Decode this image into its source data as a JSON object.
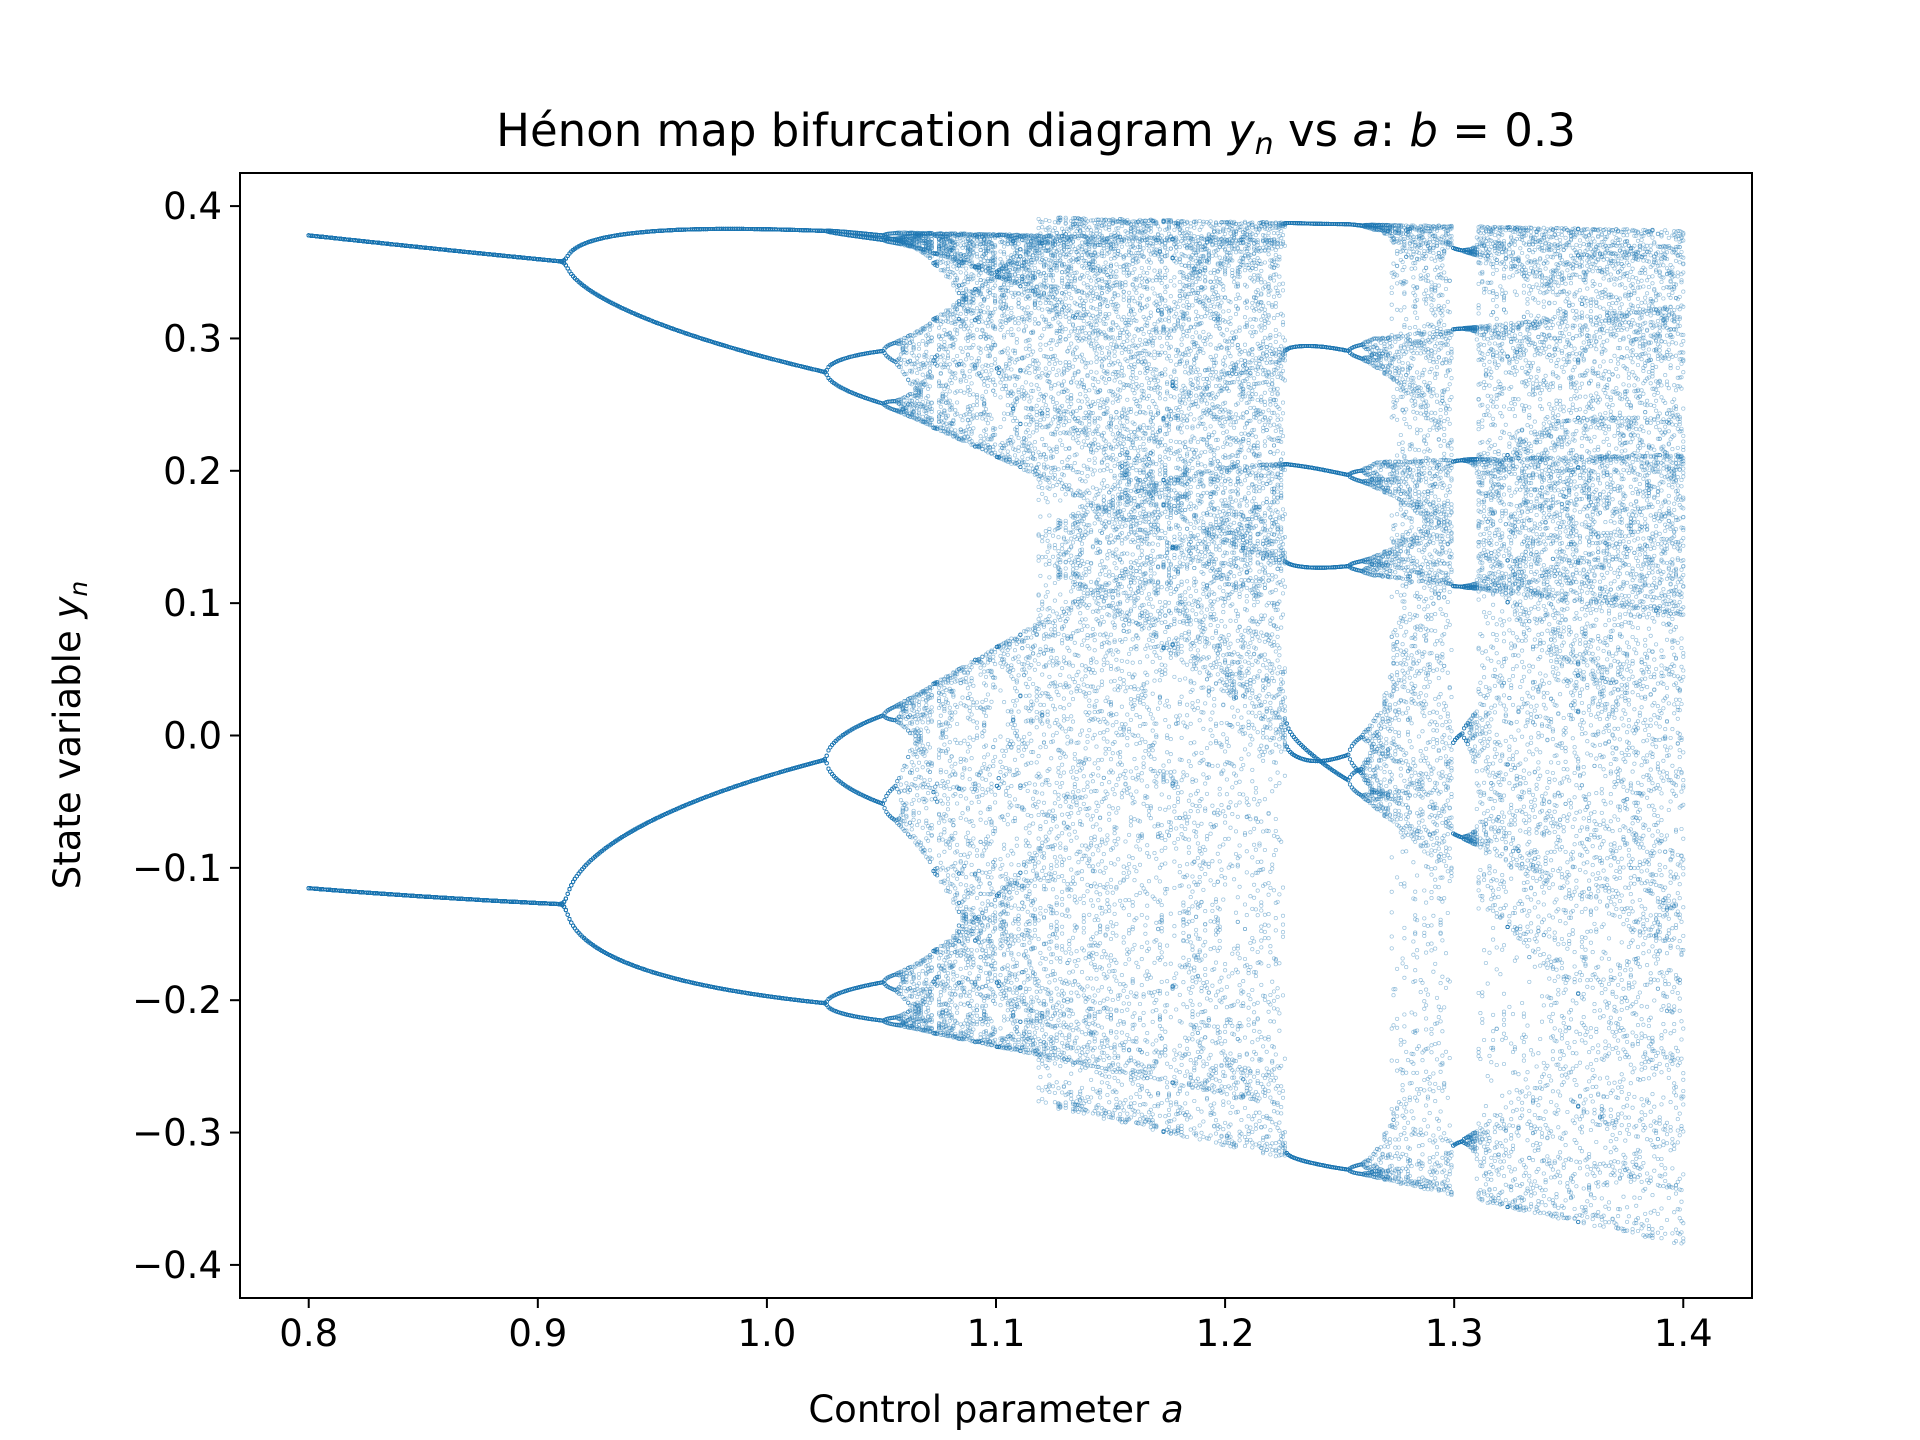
{
  "chart_data": {
    "type": "scatter",
    "title": {
      "prefix": "Hénon map bifurcation diagram ",
      "y": "y",
      "sub": "n",
      "vs": " vs ",
      "a": "a",
      "colon": ": ",
      "b": "b",
      "eq": " = 0.3"
    },
    "xlabel": {
      "text": "Control parameter ",
      "var": "a"
    },
    "ylabel": {
      "text": "State variable ",
      "var": "y",
      "sub": "n"
    },
    "xlim": [
      0.77,
      1.43
    ],
    "ylim": [
      -0.425,
      0.425
    ],
    "xticks": [
      0.8,
      0.9,
      1.0,
      1.1,
      1.2,
      1.3,
      1.4
    ],
    "xtick_labels": [
      "0.8",
      "0.9",
      "1.0",
      "1.1",
      "1.2",
      "1.3",
      "1.4"
    ],
    "yticks": [
      0.4,
      0.3,
      0.2,
      0.1,
      0.0,
      -0.1,
      -0.2,
      -0.3,
      -0.4
    ],
    "ytick_labels": [
      "0.4",
      "0.3",
      "0.2",
      "0.1",
      "0.0",
      "−0.1",
      "−0.2",
      "−0.3",
      "−0.4"
    ],
    "grid": false,
    "legend": "none",
    "marker_color": "#1f77b4",
    "b": 0.3,
    "a_range": [
      0.8,
      1.4
    ],
    "series": [
      {
        "x_source": "a",
        "y_source": "y_n",
        "marker": "hollow circle"
      }
    ],
    "sample_points": [
      {
        "x": 0.8,
        "y": 0.378
      },
      {
        "x": 0.8,
        "y": -0.115
      },
      {
        "x": 0.9,
        "y": 0.362
      },
      {
        "x": 0.9,
        "y": -0.127
      },
      {
        "x": 1.0,
        "y": 0.383
      },
      {
        "x": 1.0,
        "y": 0.29
      },
      {
        "x": 1.0,
        "y": -0.028
      },
      {
        "x": 1.0,
        "y": -0.195
      },
      {
        "x": 1.25,
        "y": 0.293
      },
      {
        "x": 1.25,
        "y": 0.205
      },
      {
        "x": 1.25,
        "y": 0.127
      },
      {
        "x": 1.25,
        "y": -0.02
      },
      {
        "x": 1.25,
        "y": -0.327
      },
      {
        "x": 1.4,
        "y": 0.38
      },
      {
        "x": 1.4,
        "y": -0.385
      }
    ]
  }
}
